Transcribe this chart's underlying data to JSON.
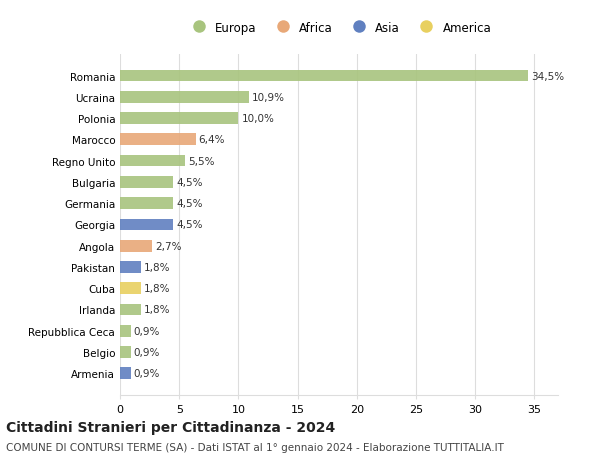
{
  "categories": [
    "Romania",
    "Ucraina",
    "Polonia",
    "Marocco",
    "Regno Unito",
    "Bulgaria",
    "Germania",
    "Georgia",
    "Angola",
    "Pakistan",
    "Cuba",
    "Irlanda",
    "Repubblica Ceca",
    "Belgio",
    "Armenia"
  ],
  "values": [
    34.5,
    10.9,
    10.0,
    6.4,
    5.5,
    4.5,
    4.5,
    4.5,
    2.7,
    1.8,
    1.8,
    1.8,
    0.9,
    0.9,
    0.9
  ],
  "labels": [
    "34,5%",
    "10,9%",
    "10,0%",
    "6,4%",
    "5,5%",
    "4,5%",
    "4,5%",
    "4,5%",
    "2,7%",
    "1,8%",
    "1,8%",
    "1,8%",
    "0,9%",
    "0,9%",
    "0,9%"
  ],
  "continents": [
    "Europa",
    "Europa",
    "Europa",
    "Africa",
    "Europa",
    "Europa",
    "Europa",
    "Asia",
    "Africa",
    "Asia",
    "America",
    "Europa",
    "Europa",
    "Europa",
    "Asia"
  ],
  "continent_colors": {
    "Europa": "#a8c47e",
    "Africa": "#e8a878",
    "Asia": "#6080c0",
    "America": "#e8d060"
  },
  "legend_order": [
    "Europa",
    "Africa",
    "Asia",
    "America"
  ],
  "title": "Cittadini Stranieri per Cittadinanza - 2024",
  "subtitle": "COMUNE DI CONTURSI TERME (SA) - Dati ISTAT al 1° gennaio 2024 - Elaborazione TUTTITALIA.IT",
  "xlim": [
    0,
    37
  ],
  "xticks": [
    0,
    5,
    10,
    15,
    20,
    25,
    30,
    35
  ],
  "background_color": "#ffffff",
  "grid_color": "#dddddd",
  "title_fontsize": 10,
  "subtitle_fontsize": 7.5,
  "label_fontsize": 7.5,
  "tick_fontsize": 8,
  "legend_fontsize": 8.5
}
